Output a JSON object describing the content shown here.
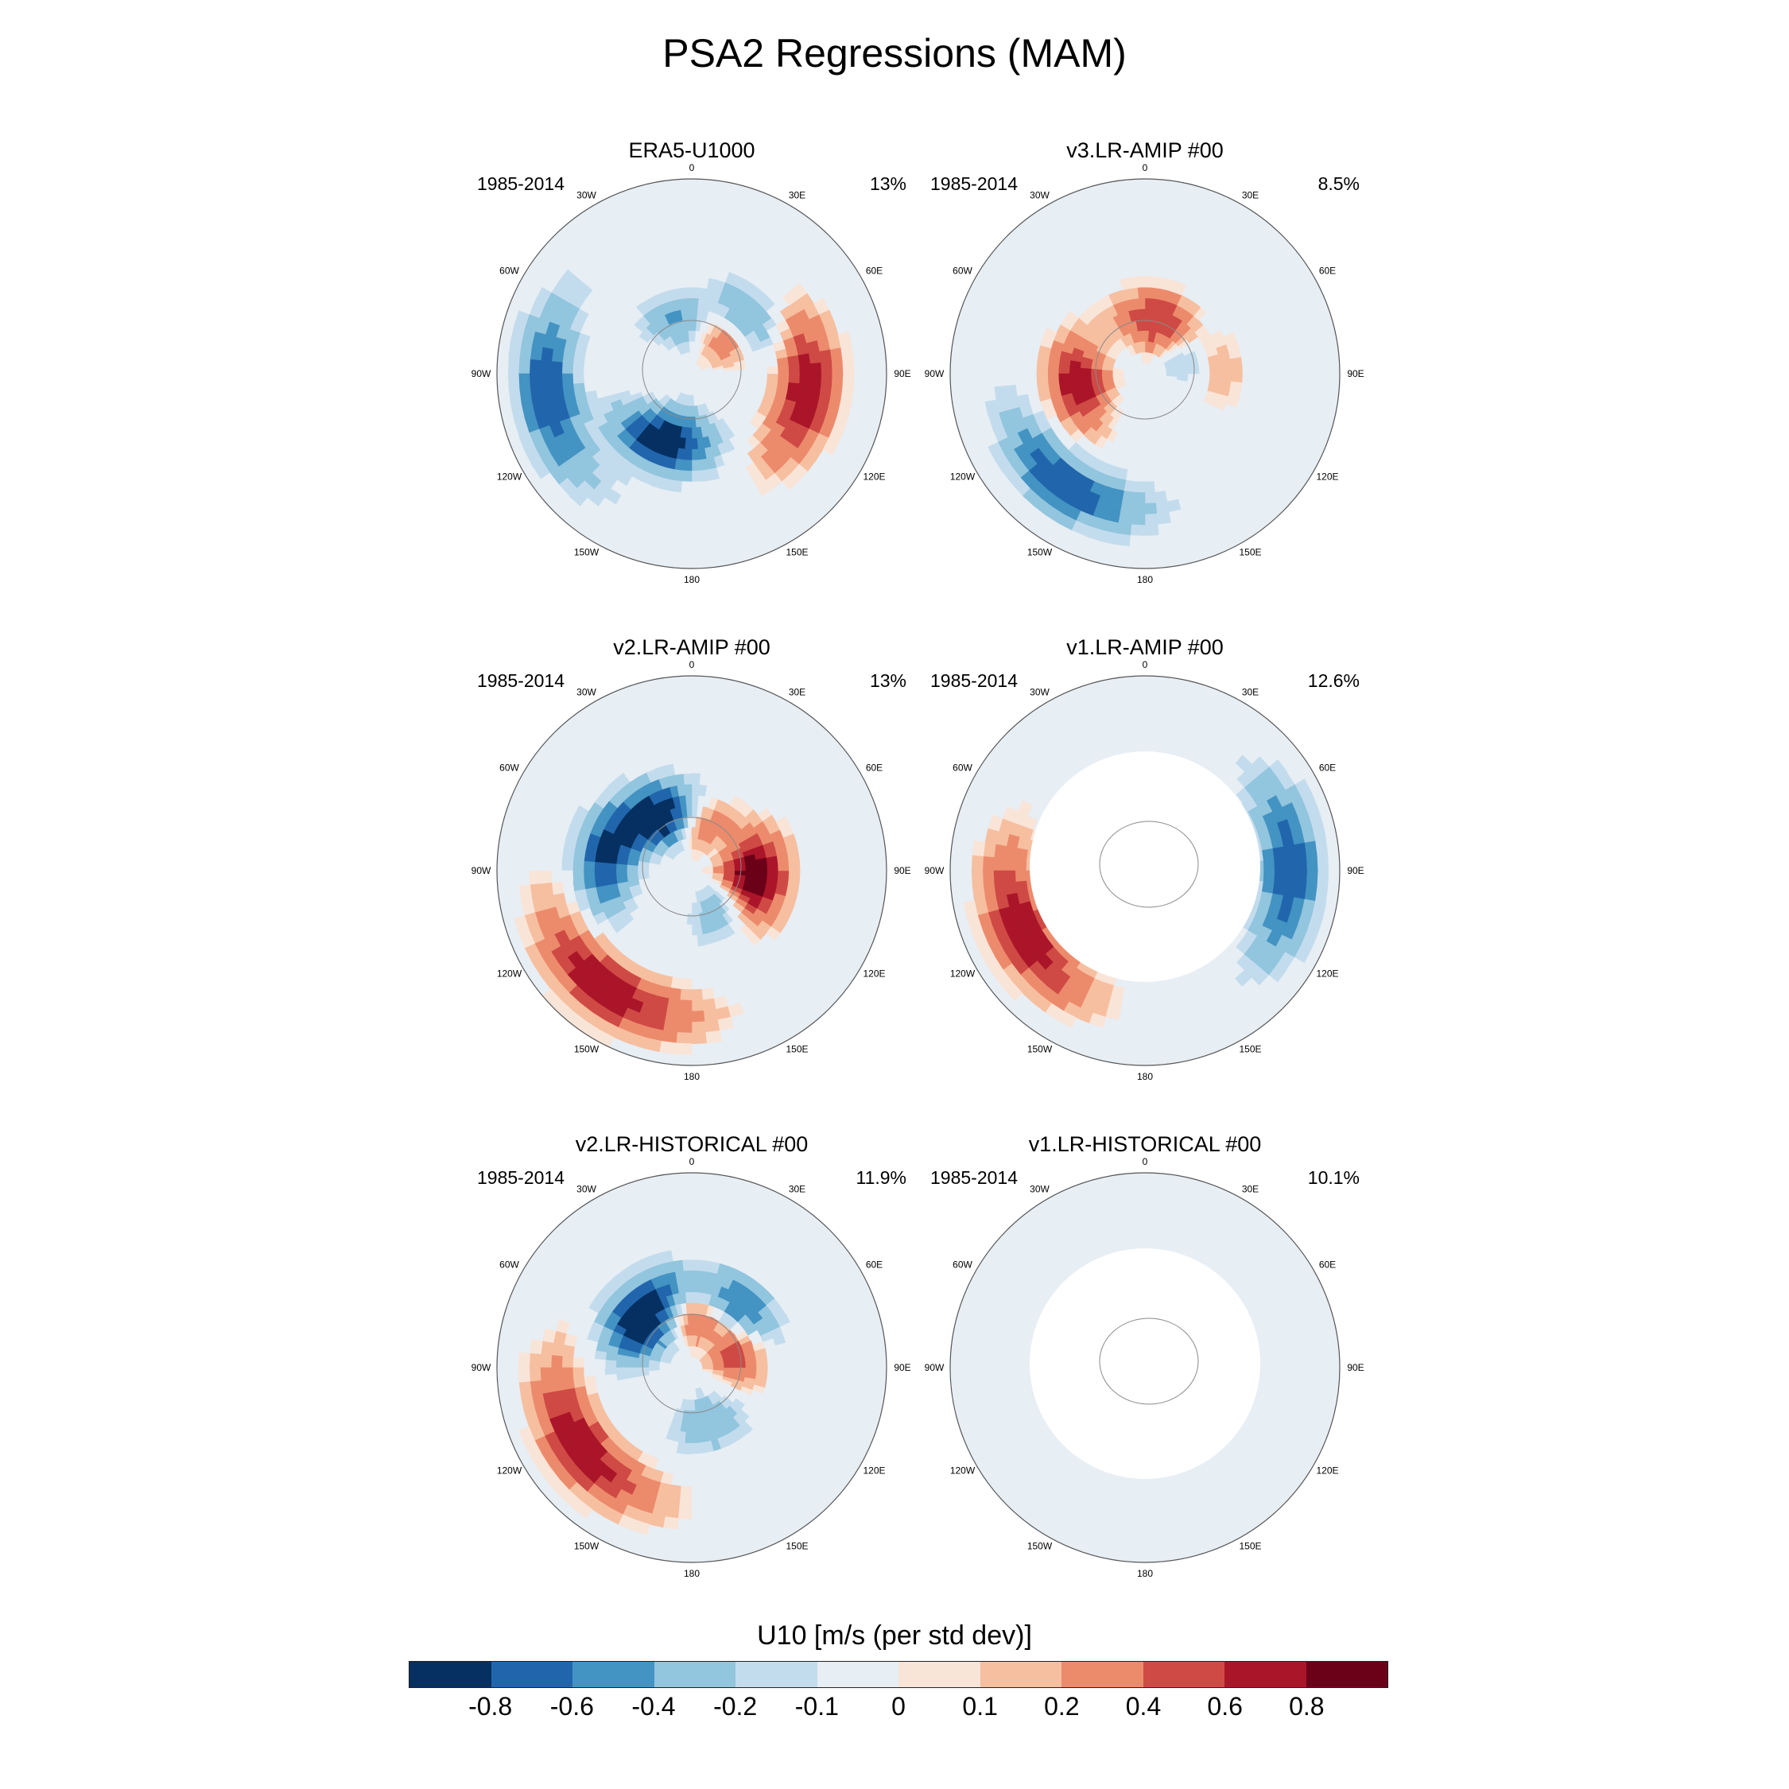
{
  "title": "PSA2 Regressions (MAM)",
  "panels": [
    {
      "title": "ERA5-U1000",
      "years": "1985-2014",
      "pct": "13%",
      "ocean_only": false
    },
    {
      "title": "v3.LR-AMIP  #00",
      "years": "1985-2014",
      "pct": "8.5%",
      "ocean_only": false
    },
    {
      "title": "v2.LR-AMIP  #00",
      "years": "1985-2014",
      "pct": "13%",
      "ocean_only": false
    },
    {
      "title": "v1.LR-AMIP  #00",
      "years": "1985-2014",
      "pct": "12.6%",
      "ocean_only": true
    },
    {
      "title": "v2.LR-HISTORICAL  #00",
      "years": "1985-2014",
      "pct": "11.9%",
      "ocean_only": false
    },
    {
      "title": "v1.LR-HISTORICAL  #00",
      "years": "1985-2014",
      "pct": "10.1%",
      "ocean_only": true
    }
  ],
  "longitude_labels": [
    "0",
    "30E",
    "60E",
    "90E",
    "120E",
    "150E",
    "180",
    "150W",
    "120W",
    "90W",
    "60W",
    "30W"
  ],
  "colorbar": {
    "title": "U10 [m/s (per std dev)]",
    "labels": [
      "-0.8",
      "-0.6",
      "-0.4",
      "-0.2",
      "-0.1",
      "0",
      "0.1",
      "0.2",
      "0.4",
      "0.6",
      "0.8"
    ],
    "colors": [
      "#053061",
      "#2166ac",
      "#4393c3",
      "#92c5de",
      "#c3dced",
      "#e7eef4",
      "#f9e4d8",
      "#f6bfa0",
      "#ec8b6c",
      "#cf4a44",
      "#ab1529",
      "#6b0119"
    ]
  }
}
